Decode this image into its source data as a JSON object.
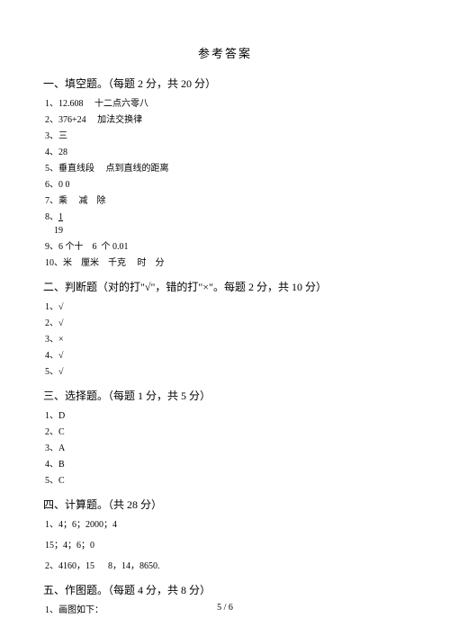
{
  "title": "参考答案",
  "sections": [
    {
      "header": "一、填空题。（每题  2 分，共 20 分）",
      "lines": [
        {
          "parts": [
            "1、12.608",
            "     十二点六零八"
          ]
        },
        {
          "parts": [
            "2、376+24",
            "     加法交换律"
          ]
        },
        {
          "parts": [
            "3、三"
          ]
        },
        {
          "parts": [
            "4、28"
          ]
        },
        {
          "parts": [
            "5、垂直线段",
            "     点到直线的距离"
          ]
        },
        {
          "parts": [
            "6、0 0"
          ]
        },
        {
          "parts": [
            "7、乘",
            "     减",
            "    除"
          ]
        },
        {
          "parts": [
            "8、",
            "19"
          ],
          "underline": true,
          "ul_text": "  1  ",
          "ul_after": "19"
        },
        {
          "parts": [
            "9、6 个十",
            "    6  个 0.01"
          ]
        },
        {
          "parts": [
            "10、米",
            "    厘米",
            "    千克",
            "     时",
            "    分"
          ]
        }
      ]
    },
    {
      "header": "二、判断题（对的打\"√\"，错的打\"×\"。每题    2 分，共 10 分）",
      "lines": [
        {
          "parts": [
            "1、√"
          ]
        },
        {
          "parts": [
            "2、√"
          ]
        },
        {
          "parts": [
            "3、×"
          ]
        },
        {
          "parts": [
            "4、√"
          ]
        },
        {
          "parts": [
            "5、√"
          ]
        }
      ]
    },
    {
      "header": "三、选择题。（每题  1 分，共 5 分）",
      "lines": [
        {
          "parts": [
            "1、D"
          ]
        },
        {
          "parts": [
            "2、C"
          ]
        },
        {
          "parts": [
            "3、A"
          ]
        },
        {
          "parts": [
            "4、B"
          ]
        },
        {
          "parts": [
            "5、C"
          ]
        }
      ]
    },
    {
      "header": "四、计算题。（共  28 分）",
      "lines": [
        {
          "parts": [
            "1、4；6；2000；4"
          ],
          "gap": true
        },
        {
          "parts": [
            "15；4；6；0"
          ],
          "gap": true
        },
        {
          "parts": [
            "2、4160，15      8，14，8650."
          ],
          "gap": true
        }
      ]
    },
    {
      "header": "五、作图题。（每题  4 分，共 8 分）",
      "lines": [
        {
          "parts": [
            "1、画图如下："
          ]
        }
      ]
    }
  ],
  "footer": "5 / 6"
}
